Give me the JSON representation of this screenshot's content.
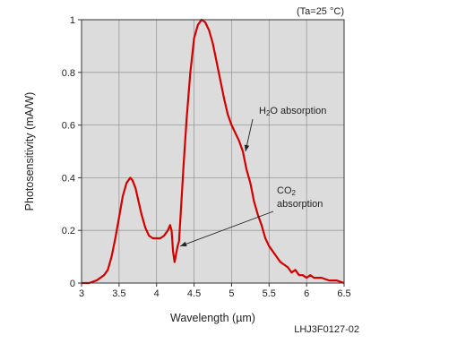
{
  "chart_data": {
    "type": "line",
    "condition": "(Ta=25 °C)",
    "xlabel": "Wavelength (µm)",
    "ylabel": "Photosensitivity (mA/W)",
    "figure_id": "LHJ3F0127-02",
    "xlim": [
      3,
      6.5
    ],
    "ylim": [
      0,
      1
    ],
    "xticks": [
      3,
      3.5,
      4,
      4.5,
      5,
      5.5,
      6,
      6.5
    ],
    "xtick_labels": [
      "3",
      "3.5",
      "4",
      "4.5",
      "5",
      "5.5",
      "6",
      "6.5"
    ],
    "yticks": [
      0,
      0.2,
      0.4,
      0.6,
      0.8,
      1
    ],
    "ytick_labels": [
      "0",
      "0.2",
      "0.4",
      "0.6",
      "0.8",
      "1"
    ],
    "grid": true,
    "line_color": "#d40000",
    "plot_background": "#dcdcdc",
    "annotations": [
      {
        "label": "H2O absorption",
        "main": "H",
        "sub": "2",
        "rest": "O absorption",
        "target": [
          5.15,
          0.5
        ]
      },
      {
        "label": "CO2 absorption",
        "line1_main": "CO",
        "line1_sub": "2",
        "line2": "absorption",
        "target": [
          4.28,
          0.13
        ]
      }
    ],
    "series": [
      {
        "x": [
          3.0,
          3.1,
          3.2,
          3.3,
          3.35,
          3.4,
          3.45,
          3.5,
          3.55,
          3.6,
          3.65,
          3.68,
          3.72,
          3.76,
          3.8,
          3.85,
          3.9,
          3.95,
          4.0,
          4.05,
          4.1,
          4.15,
          4.18,
          4.2,
          4.22,
          4.24,
          4.26,
          4.28,
          4.3,
          4.33,
          4.36,
          4.4,
          4.45,
          4.5,
          4.55,
          4.6,
          4.65,
          4.7,
          4.75,
          4.8,
          4.85,
          4.9,
          4.95,
          5.0,
          5.05,
          5.1,
          5.15,
          5.2,
          5.25,
          5.3,
          5.35,
          5.4,
          5.45,
          5.5,
          5.55,
          5.6,
          5.65,
          5.7,
          5.75,
          5.8,
          5.85,
          5.9,
          5.95,
          6.0,
          6.05,
          6.1,
          6.2,
          6.3,
          6.4,
          6.5
        ],
        "y": [
          0.0,
          0.0,
          0.01,
          0.03,
          0.05,
          0.1,
          0.17,
          0.25,
          0.33,
          0.38,
          0.4,
          0.39,
          0.36,
          0.31,
          0.26,
          0.21,
          0.18,
          0.17,
          0.17,
          0.17,
          0.18,
          0.2,
          0.22,
          0.2,
          0.12,
          0.08,
          0.11,
          0.14,
          0.16,
          0.3,
          0.45,
          0.62,
          0.8,
          0.93,
          0.98,
          1.0,
          0.99,
          0.96,
          0.91,
          0.84,
          0.77,
          0.7,
          0.64,
          0.6,
          0.57,
          0.54,
          0.5,
          0.43,
          0.38,
          0.31,
          0.26,
          0.22,
          0.17,
          0.14,
          0.12,
          0.1,
          0.08,
          0.07,
          0.06,
          0.04,
          0.05,
          0.03,
          0.03,
          0.02,
          0.03,
          0.02,
          0.02,
          0.01,
          0.01,
          0.0
        ]
      }
    ]
  }
}
